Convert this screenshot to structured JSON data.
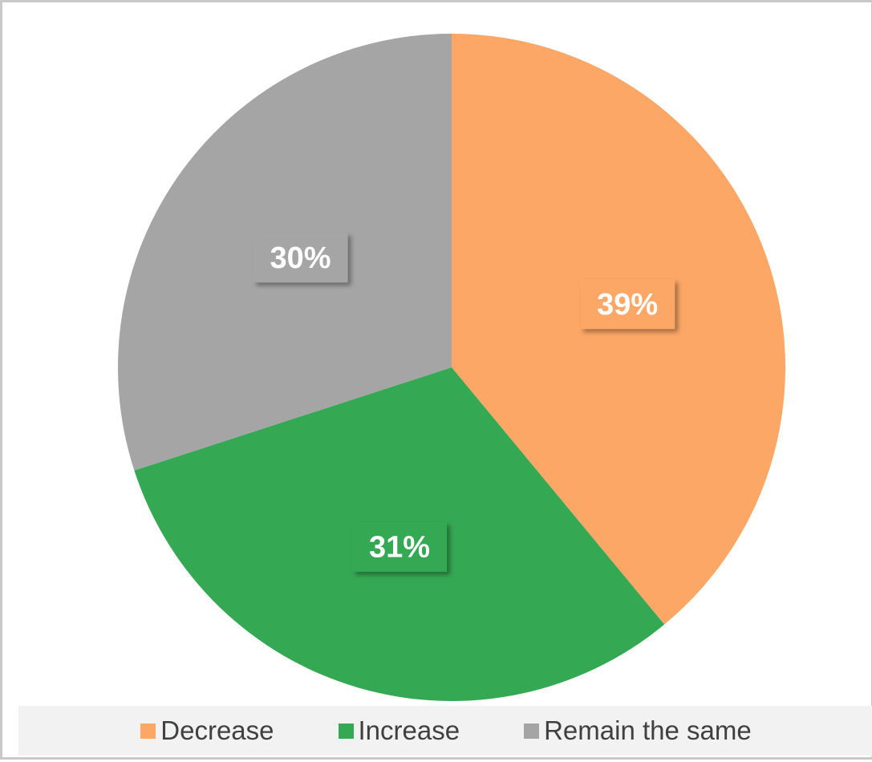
{
  "chart_data": {
    "type": "pie",
    "categories": [
      "Decrease",
      "Increase",
      "Remain the same"
    ],
    "values": [
      39,
      31,
      30
    ],
    "labels": [
      "39%",
      "31%",
      "30%"
    ],
    "colors": [
      "#FDA766",
      "#35A853",
      "#A5A5A5"
    ],
    "legend_position": "bottom"
  }
}
